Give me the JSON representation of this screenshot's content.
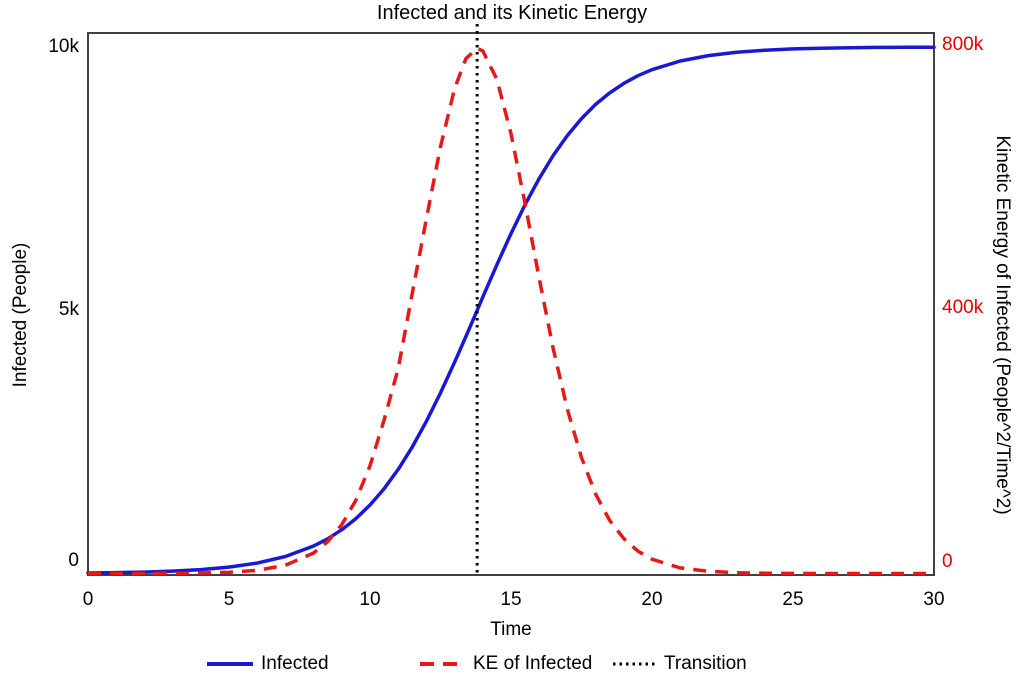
{
  "chart_data": {
    "type": "line",
    "title": "Infected and its Kinetic Energy",
    "x_axis": {
      "label": "Time",
      "range": [
        0,
        30
      ],
      "ticks": [
        0,
        5,
        10,
        15,
        20,
        25,
        30
      ],
      "tick_labels": [
        "0",
        "5",
        "10",
        "15",
        "20",
        "25",
        "30"
      ]
    },
    "y_axis_left": {
      "label": "Infected (People)",
      "range": [
        0,
        10000
      ],
      "ticks": [
        0,
        5000,
        10000
      ],
      "tick_labels": [
        "0",
        "5k",
        "10k"
      ],
      "color": "#000000"
    },
    "y_axis_right": {
      "label": "Kinetic Energy of Infected (People^2/Time^2)",
      "range": [
        0,
        800000
      ],
      "ticks": [
        0,
        400000,
        800000
      ],
      "tick_labels": [
        "0",
        "400k",
        "800k"
      ],
      "color": "#e60000"
    },
    "frame_color": "#404040",
    "grid": false,
    "series": [
      {
        "name": "Infected",
        "axis": "left",
        "color": "#1919d2",
        "style": "solid",
        "x": [
          0,
          1,
          2,
          3,
          4,
          5,
          6,
          7,
          8,
          8.5,
          9,
          9.5,
          10,
          10.5,
          11,
          11.5,
          12,
          12.5,
          13,
          13.4,
          13.8,
          14,
          14.5,
          15,
          15.5,
          16,
          16.5,
          17,
          17.5,
          18,
          18.5,
          19,
          19.5,
          20,
          21,
          22,
          23,
          24,
          25,
          26,
          27,
          28,
          29,
          30
        ],
        "y": [
          10,
          17,
          27,
          45,
          74,
          121,
          198,
          323,
          522,
          660,
          832,
          1043,
          1301,
          1611,
          1978,
          2405,
          2890,
          3430,
          4013,
          4502,
          5000,
          5250,
          5866,
          6456,
          7006,
          7503,
          7942,
          8320,
          8641,
          8909,
          9129,
          9308,
          9454,
          9569,
          9734,
          9837,
          9900,
          9939,
          9963,
          9978,
          9986,
          9992,
          9995,
          9997
        ]
      },
      {
        "name": "KE of Infected",
        "axis": "right",
        "color": "#e61919",
        "style": "dashed",
        "x": [
          0,
          1,
          2,
          3,
          4,
          5,
          6,
          7,
          8,
          8.5,
          9,
          9.5,
          10,
          10.5,
          11,
          11.5,
          12,
          12.5,
          13,
          13.4,
          13.8,
          14,
          14.5,
          15,
          15.5,
          16,
          16.5,
          17,
          17.5,
          18,
          18.5,
          19,
          19.5,
          20,
          21,
          22,
          23,
          24,
          25,
          26,
          27,
          28,
          29,
          30
        ],
        "y": [
          0,
          35,
          95,
          255,
          685,
          1830,
          4810,
          12430,
          31100,
          48300,
          74000,
          111000,
          163000,
          232300,
          310300,
          424400,
          537000,
          646100,
          734200,
          779400,
          795000,
          791000,
          748000,
          665800,
          559700,
          446500,
          339800,
          248500,
          175400,
          120200,
          80400,
          52800,
          33900,
          21600,
          8500,
          3270,
          1250,
          470,
          180,
          66,
          25,
          9,
          3,
          1
        ]
      }
    ],
    "annotations": [
      {
        "name": "Transition",
        "type": "vline",
        "x": 13.8,
        "color": "#000000",
        "style": "dotted"
      }
    ],
    "legend": {
      "position": "bottom",
      "entries": [
        {
          "label": "Infected",
          "color": "#1919d2",
          "style": "solid"
        },
        {
          "label": "KE of Infected",
          "color": "#e61919",
          "style": "dashed"
        },
        {
          "label": "Transition",
          "color": "#000000",
          "style": "dotted"
        }
      ]
    }
  }
}
